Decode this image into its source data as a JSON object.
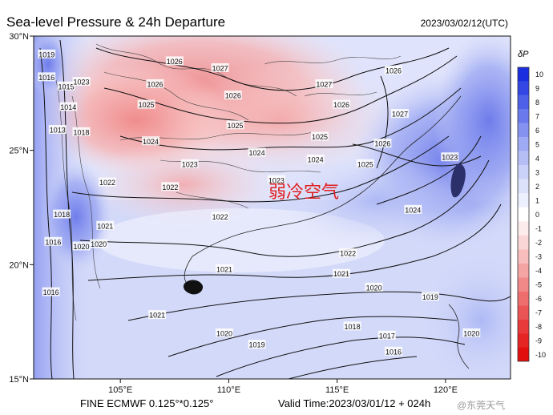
{
  "header": {
    "title": "Sea-level Pressure & 24h Departure",
    "valid_utc": "2023/03/02/12(UTC)"
  },
  "footer": {
    "model": "FINE ECMWF 0.125°*0.125°",
    "valid_time": "Valid Time:2023/03/01/12 + 024h",
    "watermark": "@东莞天气"
  },
  "map": {
    "extent": {
      "lon_min": 101,
      "lon_max": 123,
      "lat_min": 15,
      "lat_max": 30
    },
    "lon_ticks": [
      {
        "lon": 105,
        "label": "105°E"
      },
      {
        "lon": 110,
        "label": "110°E"
      },
      {
        "lon": 115,
        "label": "115°E"
      },
      {
        "lon": 120,
        "label": "120°E"
      }
    ],
    "lat_ticks": [
      {
        "lat": 15,
        "label": "15°N"
      },
      {
        "lat": 20,
        "label": "20°N"
      },
      {
        "lat": 25,
        "label": "25°N"
      },
      {
        "lat": 30,
        "label": "30°N"
      }
    ],
    "annotation": {
      "text": "弱冷空气",
      "color": "#e02020"
    },
    "isobar_labels": [
      {
        "text": "1026",
        "lon": 107.5,
        "lat": 28.9
      },
      {
        "text": "1027",
        "lon": 109.6,
        "lat": 28.6
      },
      {
        "text": "1026",
        "lon": 106.6,
        "lat": 27.9
      },
      {
        "text": "1025",
        "lon": 106.2,
        "lat": 27.0
      },
      {
        "text": "1026",
        "lon": 110.2,
        "lat": 27.4
      },
      {
        "text": "1027",
        "lon": 114.4,
        "lat": 27.9
      },
      {
        "text": "1026",
        "lon": 115.2,
        "lat": 27.0
      },
      {
        "text": "1026",
        "lon": 117.6,
        "lat": 28.5
      },
      {
        "text": "1027",
        "lon": 117.9,
        "lat": 26.6
      },
      {
        "text": "1025",
        "lon": 110.3,
        "lat": 26.1
      },
      {
        "text": "1024",
        "lon": 106.4,
        "lat": 25.4
      },
      {
        "text": "1024",
        "lon": 111.3,
        "lat": 24.9
      },
      {
        "text": "1023",
        "lon": 108.2,
        "lat": 24.4
      },
      {
        "text": "1025",
        "lon": 114.2,
        "lat": 25.6
      },
      {
        "text": "1024",
        "lon": 114.0,
        "lat": 24.6
      },
      {
        "text": "1026",
        "lon": 117.1,
        "lat": 25.3
      },
      {
        "text": "1025",
        "lon": 116.3,
        "lat": 24.4
      },
      {
        "text": "1023",
        "lon": 112.2,
        "lat": 23.7
      },
      {
        "text": "1022",
        "lon": 104.4,
        "lat": 23.6
      },
      {
        "text": "1022",
        "lon": 107.3,
        "lat": 23.4
      },
      {
        "text": "1022",
        "lon": 109.6,
        "lat": 22.1
      },
      {
        "text": "1021",
        "lon": 104.3,
        "lat": 21.7
      },
      {
        "text": "1020",
        "lon": 104.0,
        "lat": 20.9
      },
      {
        "text": "1022",
        "lon": 115.5,
        "lat": 20.5
      },
      {
        "text": "1021",
        "lon": 115.2,
        "lat": 19.6
      },
      {
        "text": "1021",
        "lon": 109.8,
        "lat": 19.8
      },
      {
        "text": "1020",
        "lon": 116.7,
        "lat": 19.0
      },
      {
        "text": "1019",
        "lon": 119.3,
        "lat": 18.6
      },
      {
        "text": "1018",
        "lon": 115.7,
        "lat": 17.3
      },
      {
        "text": "1017",
        "lon": 117.3,
        "lat": 16.9
      },
      {
        "text": "1016",
        "lon": 117.6,
        "lat": 16.2
      },
      {
        "text": "1020",
        "lon": 109.8,
        "lat": 17.0
      },
      {
        "text": "1019",
        "lon": 111.3,
        "lat": 16.5
      },
      {
        "text": "1021",
        "lon": 106.7,
        "lat": 17.8
      },
      {
        "text": "1024",
        "lon": 118.5,
        "lat": 22.4
      },
      {
        "text": "1023",
        "lon": 120.2,
        "lat": 24.7
      },
      {
        "text": "1020",
        "lon": 121.2,
        "lat": 17.0
      },
      {
        "text": "1019",
        "lon": 101.6,
        "lat": 29.2
      },
      {
        "text": "1016",
        "lon": 101.6,
        "lat": 28.2
      },
      {
        "text": "1015",
        "lon": 102.5,
        "lat": 27.8
      },
      {
        "text": "1014",
        "lon": 102.6,
        "lat": 26.9
      },
      {
        "text": "1013",
        "lon": 102.1,
        "lat": 25.9
      },
      {
        "text": "1018",
        "lon": 103.2,
        "lat": 25.8
      },
      {
        "text": "1023",
        "lon": 103.2,
        "lat": 28.0
      },
      {
        "text": "1020",
        "lon": 103.2,
        "lat": 20.8
      },
      {
        "text": "1018",
        "lon": 102.3,
        "lat": 22.2
      },
      {
        "text": "1016",
        "lon": 101.8,
        "lat": 18.8
      },
      {
        "text": "1016",
        "lon": 101.9,
        "lat": 21.0
      }
    ]
  },
  "colorbar": {
    "title": "δP",
    "levels": [
      {
        "label": "10",
        "color": "#1a2ee0"
      },
      {
        "label": "9",
        "color": "#3447e4"
      },
      {
        "label": "8",
        "color": "#4e60e8"
      },
      {
        "label": "7",
        "color": "#6a7aec"
      },
      {
        "label": "6",
        "color": "#8592f0"
      },
      {
        "label": "5",
        "color": "#9eaaf3"
      },
      {
        "label": "4",
        "color": "#b5bff6"
      },
      {
        "label": "3",
        "color": "#cbd2f9"
      },
      {
        "label": "2",
        "color": "#dde2fb"
      },
      {
        "label": "1",
        "color": "#eceffd"
      },
      {
        "label": "0",
        "color": "#ffffff"
      },
      {
        "label": "-1",
        "color": "#fdecec"
      },
      {
        "label": "-2",
        "color": "#fbd6d6"
      },
      {
        "label": "-3",
        "color": "#f8bebe"
      },
      {
        "label": "-4",
        "color": "#f5a4a4"
      },
      {
        "label": "-5",
        "color": "#f28989"
      },
      {
        "label": "-6",
        "color": "#ee6e6e"
      },
      {
        "label": "-7",
        "color": "#eb5454"
      },
      {
        "label": "-8",
        "color": "#e83a3a"
      },
      {
        "label": "-9",
        "color": "#e52424"
      },
      {
        "label": "-10",
        "color": "#e20f0f"
      }
    ]
  }
}
